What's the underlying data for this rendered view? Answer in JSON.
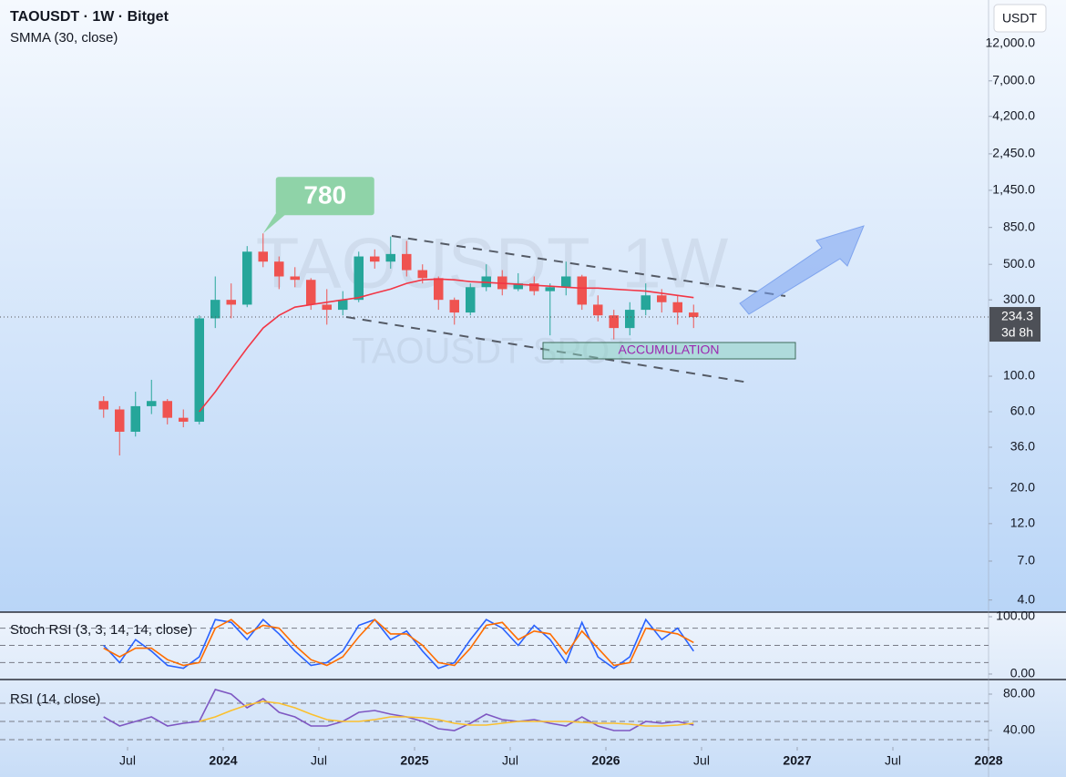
{
  "chart_data": [
    {
      "type": "candlestick",
      "title": "TAOUSDT · 1W · Bitget",
      "subtitle": "SMMA (30, close)",
      "currency": "USDT",
      "watermark": "TAOUSDT, 1W",
      "watermark_sub": "TAOUSDT SPOT",
      "annotation": "ACCUMULATION",
      "log_scale": true,
      "up_color": "#26a69a",
      "down_color": "#ef5350",
      "x": [
        "2023-05",
        "2023-06",
        "2023-07",
        "2023-08",
        "2023-09",
        "2023-10",
        "2023-11",
        "2023-12",
        "2024-01",
        "2024-02",
        "2024-03",
        "2024-04",
        "2024-05",
        "2024-06",
        "2024-07",
        "2024-08",
        "2024-09",
        "2024-10",
        "2024-11",
        "2024-12",
        "2025-01",
        "2025-02",
        "2025-03",
        "2025-04",
        "2025-05",
        "2025-06",
        "2025-07",
        "2025-08",
        "2025-09",
        "2025-10",
        "2025-11",
        "2025-12",
        "2026-01",
        "2026-02",
        "2026-03",
        "2026-04",
        "2026-05",
        "2026-06"
      ],
      "open": [
        70,
        62,
        45,
        65,
        70,
        55,
        52,
        230,
        300,
        280,
        600,
        520,
        420,
        400,
        280,
        260,
        300,
        560,
        520,
        580,
        460,
        410,
        300,
        250,
        360,
        420,
        350,
        380,
        340,
        360,
        420,
        280,
        240,
        200,
        260,
        320,
        290,
        250
      ],
      "high": [
        75,
        65,
        80,
        95,
        72,
        62,
        240,
        420,
        380,
        650,
        780,
        560,
        480,
        410,
        350,
        340,
        600,
        620,
        745.8,
        700,
        500,
        420,
        310,
        380,
        500,
        460,
        440,
        420,
        380,
        520,
        430,
        320,
        260,
        290,
        380,
        350,
        320,
        280
      ],
      "low": [
        55,
        32,
        42,
        58,
        50,
        48,
        50,
        200,
        230,
        270,
        480,
        350,
        360,
        260,
        210,
        240,
        290,
        470,
        470,
        420,
        380,
        260,
        210,
        240,
        340,
        320,
        340,
        320,
        180,
        320,
        260,
        220,
        170,
        180,
        240,
        250,
        210,
        200
      ],
      "close": [
        62,
        45,
        65,
        70,
        55,
        52,
        230,
        300,
        280,
        600,
        520,
        420,
        400,
        280,
        260,
        300,
        560,
        520,
        580,
        460,
        410,
        300,
        250,
        360,
        420,
        350,
        380,
        340,
        360,
        420,
        280,
        240,
        200,
        260,
        320,
        290,
        250,
        234.3
      ],
      "series": [
        {
          "name": "SMMA (30, close)",
          "color": "#f23645",
          "values": [
            null,
            null,
            null,
            null,
            null,
            null,
            60,
            80,
            110,
            150,
            200,
            240,
            270,
            280,
            290,
            300,
            310,
            330,
            350,
            380,
            400,
            405,
            400,
            390,
            385,
            380,
            375,
            370,
            365,
            360,
            355,
            355,
            350,
            345,
            340,
            330,
            320,
            310
          ]
        }
      ],
      "last_price": 234.3,
      "countdown": "3d 8h",
      "xlim": [
        "2022-11",
        "2028-01"
      ],
      "xticks": [
        {
          "value": "2023-07",
          "label": "Jul"
        },
        {
          "value": "2024-01",
          "label": "2024"
        },
        {
          "value": "2024-07",
          "label": "Jul"
        },
        {
          "value": "2025-01",
          "label": "2025"
        },
        {
          "value": "2025-07",
          "label": "Jul"
        },
        {
          "value": "2026-01",
          "label": "2026"
        },
        {
          "value": "2026-07",
          "label": "Jul"
        },
        {
          "value": "2027-01",
          "label": "2027"
        },
        {
          "value": "2027-07",
          "label": "Jul"
        },
        {
          "value": "2028-01",
          "label": "2028"
        }
      ],
      "ylim": [
        3.36,
        22400
      ],
      "yticks": [
        {
          "value": 4,
          "label": "4.0"
        },
        {
          "value": 7,
          "label": "7.0"
        },
        {
          "value": 12,
          "label": "12.0"
        },
        {
          "value": 20,
          "label": "20.0"
        },
        {
          "value": 36,
          "label": "36.0"
        },
        {
          "value": 60,
          "label": "60.0"
        },
        {
          "value": 100,
          "label": "100.0"
        },
        {
          "value": 300,
          "label": "300.0"
        },
        {
          "value": 500,
          "label": "500.0"
        },
        {
          "value": 850,
          "label": "850.0"
        },
        {
          "value": 1450,
          "label": "1,450.0"
        },
        {
          "value": 2450,
          "label": "2,450.0"
        },
        {
          "value": 4200,
          "label": "4,200.0"
        },
        {
          "value": 7000,
          "label": "7,000.0"
        },
        {
          "value": 12000,
          "label": "12,000.0"
        }
      ]
    },
    {
      "type": "line",
      "title": "Stoch RSI (3, 3, 14, 14, close)",
      "series": [
        {
          "name": "K",
          "color": "#2962ff",
          "values": [
            50,
            20,
            60,
            40,
            15,
            10,
            30,
            95,
            90,
            60,
            95,
            70,
            40,
            15,
            20,
            40,
            85,
            95,
            60,
            75,
            40,
            10,
            20,
            60,
            95,
            80,
            50,
            85,
            60,
            20,
            90,
            30,
            10,
            30,
            95,
            60,
            80,
            40
          ]
        },
        {
          "name": "D",
          "color": "#ff6d00",
          "values": [
            45,
            30,
            45,
            45,
            25,
            15,
            20,
            80,
            95,
            70,
            85,
            80,
            50,
            25,
            15,
            30,
            65,
            95,
            70,
            70,
            50,
            20,
            15,
            45,
            85,
            90,
            60,
            75,
            70,
            35,
            75,
            45,
            15,
            20,
            80,
            75,
            70,
            55
          ]
        }
      ],
      "levels": [
        20,
        50,
        80
      ],
      "ylim": [
        -8,
        108
      ],
      "yticks": [
        {
          "value": 100,
          "label": "100.00"
        },
        {
          "value": 0,
          "label": "0.00"
        }
      ]
    },
    {
      "type": "line",
      "title": "RSI (14, close)",
      "series": [
        {
          "name": "RSI",
          "color": "#7e57c2",
          "values": [
            55,
            45,
            50,
            55,
            45,
            48,
            50,
            85,
            80,
            65,
            75,
            60,
            55,
            45,
            45,
            50,
            60,
            62,
            58,
            55,
            50,
            42,
            40,
            48,
            58,
            52,
            50,
            52,
            48,
            45,
            55,
            45,
            40,
            40,
            50,
            48,
            50,
            46
          ]
        },
        {
          "name": "RSI MA",
          "color": "#fbc02d",
          "values": [
            null,
            null,
            null,
            null,
            null,
            null,
            50,
            55,
            62,
            68,
            72,
            70,
            65,
            58,
            52,
            50,
            50,
            52,
            55,
            55,
            54,
            52,
            48,
            46,
            46,
            48,
            50,
            50,
            50,
            50,
            49,
            48,
            48,
            47,
            45,
            45,
            46,
            48
          ]
        }
      ],
      "levels": [
        30,
        50,
        70
      ],
      "ylim": [
        22,
        96
      ],
      "yticks": [
        {
          "value": 80,
          "label": "80.00"
        },
        {
          "value": 40,
          "label": "40.00"
        }
      ]
    }
  ]
}
